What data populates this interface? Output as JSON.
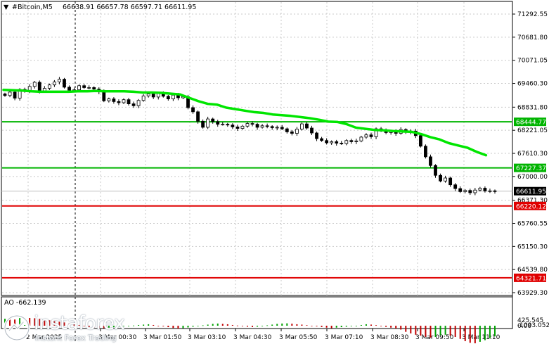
{
  "chart_data": {
    "type": "candlestick",
    "symbol_header": "#Bitcoin,M5",
    "ohlc_header": "66638.91 66657.78 66597.71 66611.95",
    "price_ticks": [
      "71292.55",
      "70681.80",
      "70071.05",
      "69460.30",
      "68831.80",
      "68221.05",
      "67610.30",
      "67000.00",
      "66371.30",
      "65760.55",
      "65150.30",
      "64539.80",
      "63929.30"
    ],
    "price_tick_values": [
      71292.55,
      70681.8,
      70071.05,
      69460.3,
      68831.8,
      68221.05,
      67610.3,
      67000.0,
      66371.3,
      65760.55,
      65150.3,
      64539.8,
      63929.3
    ],
    "price_range": [
      63760,
      71560
    ],
    "time_labels": [
      "2 Mar 2025",
      "3 Mar 00:30",
      "3 Mar 01:50",
      "3 Mar 03:10",
      "3 Mar 04:30",
      "3 Mar 05:50",
      "3 Mar 07:10",
      "3 Mar 08:30",
      "3 Mar 09:50",
      "3 Mar 11:10"
    ],
    "current_price": "66611.95",
    "current_price_value": 66611.95,
    "levels": [
      {
        "label": "68444.77",
        "value": 68444.77,
        "color": "#00b400",
        "name": "resistance-level"
      },
      {
        "label": "67227.37",
        "value": 67227.37,
        "color": "#00b400",
        "name": "support-level-green"
      },
      {
        "label": "66220.12",
        "value": 66220.12,
        "color": "#e00000",
        "name": "support-level-red"
      },
      {
        "label": "64321.71",
        "value": 64321.71,
        "color": "#e00000",
        "name": "target-level-red"
      }
    ],
    "closes": [
      69140,
      69230,
      69070,
      69300,
      69250,
      69380,
      69490,
      69260,
      69330,
      69420,
      69500,
      69570,
      69360,
      69280,
      69290,
      69400,
      69350,
      69350,
      69310,
      69240,
      69000,
      69050,
      68980,
      68950,
      69030,
      68920,
      68870,
      69010,
      69130,
      69180,
      69100,
      69190,
      69120,
      69050,
      69150,
      69080,
      69110,
      68820,
      68710,
      68460,
      68300,
      68520,
      68450,
      68380,
      68380,
      68360,
      68310,
      68270,
      68330,
      68400,
      68380,
      68300,
      68340,
      68320,
      68290,
      68300,
      68260,
      68180,
      68140,
      68250,
      68390,
      68280,
      68150,
      68000,
      67950,
      67890,
      67920,
      67880,
      67870,
      67950,
      67920,
      67940,
      68040,
      68100,
      68050,
      68260,
      68210,
      68160,
      68200,
      68140,
      68240,
      68170,
      68200,
      68080,
      67800,
      67520,
      67290,
      67030,
      66880,
      66960,
      66780,
      66680,
      66600,
      66630,
      66570,
      66640,
      66690,
      66620,
      66620,
      66612
    ],
    "ma_values": [
      69290,
      69280,
      69270,
      69250,
      69240,
      69240,
      69240,
      69240,
      69250,
      69250,
      69260,
      69250,
      69250,
      69250,
      69240,
      69220,
      69220,
      69210,
      69190,
      69170,
      69080,
      68990,
      68920,
      68900,
      68820,
      68780,
      68740,
      68700,
      68680,
      68640,
      68620,
      68600,
      68570,
      68540,
      68500,
      68450,
      68440,
      68380,
      68290,
      68260,
      68230,
      68220,
      68200,
      68190,
      68180,
      68120,
      68040,
      67980,
      67880,
      67820,
      67760,
      67650,
      67560
    ],
    "ma_x_start": 5,
    "ma_x_step": 13.2,
    "ao_label": "AO -662.139",
    "ao_ticks": [
      "425.545",
      "0.00",
      "-1093.052"
    ],
    "ao_tick_values": [
      425.545,
      0,
      -1093.052
    ],
    "ao_values": [
      380,
      360,
      340,
      420,
      430,
      425,
      410,
      380,
      360,
      300,
      250,
      220,
      180,
      120,
      80,
      40,
      -20,
      -80,
      -120,
      -150,
      -160,
      -140,
      -100,
      -60,
      -30,
      -10,
      10,
      40,
      60,
      80,
      40,
      0,
      -40,
      -90,
      -140,
      -180,
      -150,
      -110,
      -60,
      -20,
      20,
      60,
      100,
      120,
      100,
      80,
      40,
      10,
      -20,
      -60,
      -80,
      -60,
      -20,
      20,
      60,
      100,
      120,
      130,
      110,
      80,
      60,
      30,
      0,
      -40,
      -80,
      -120,
      -150,
      -120,
      -90,
      -60,
      -30,
      0,
      40,
      80,
      60,
      30,
      -20,
      -70,
      -120,
      -170,
      -240,
      -380,
      -480,
      -560,
      -620,
      -690,
      -740,
      -700,
      -600,
      -560,
      -620,
      -700,
      -820,
      -960,
      -1060,
      -1093,
      -1000,
      -900,
      -780,
      -662
    ],
    "ao_last": -662.139
  },
  "logo": {
    "name": "instaforex",
    "tagline": "Instant Forex Trading"
  },
  "colors": {
    "ma": "#00e600",
    "green_level": "#00b400",
    "red_level": "#e00000",
    "candle": "#000000",
    "ao_up": "#00a000",
    "ao_down": "#c00000",
    "grid": "#c8c8c8"
  }
}
